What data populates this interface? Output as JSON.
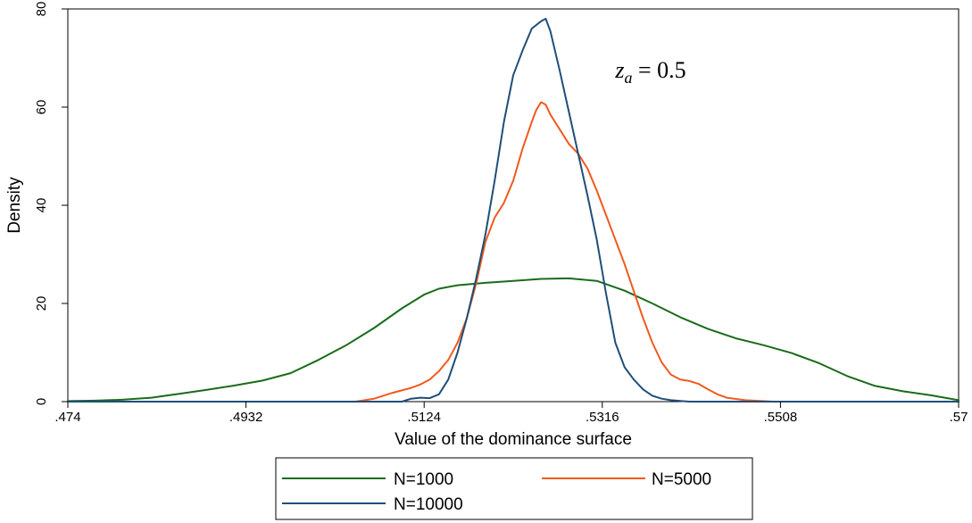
{
  "chart_data": {
    "type": "line",
    "xlabel": "Value of the dominance surface",
    "ylabel": "Density",
    "xlim": [
      0.474,
      0.57
    ],
    "ylim": [
      0,
      80
    ],
    "x_ticks": [
      0.474,
      0.4932,
      0.5124,
      0.5316,
      0.5508,
      0.57
    ],
    "x_tick_labels": [
      ".474",
      ".4932",
      ".5124",
      ".5316",
      ".5508",
      ".57"
    ],
    "y_ticks": [
      0,
      20,
      40,
      60,
      80
    ],
    "y_tick_labels": [
      "0",
      "20",
      "40",
      "60",
      "80"
    ],
    "annotation": {
      "var": "z",
      "sub": "a",
      "rest": " = 0.5",
      "x": 0.533,
      "y": 66
    },
    "grid": false,
    "legend_position": "bottom",
    "series": [
      {
        "name": "N=1000",
        "color": "#1a6b1a",
        "points": [
          [
            0.474,
            0.1
          ],
          [
            0.477,
            0.2
          ],
          [
            0.48,
            0.4
          ],
          [
            0.483,
            0.8
          ],
          [
            0.486,
            1.6
          ],
          [
            0.489,
            2.4
          ],
          [
            0.492,
            3.3
          ],
          [
            0.495,
            4.3
          ],
          [
            0.498,
            5.8
          ],
          [
            0.501,
            8.5
          ],
          [
            0.504,
            11.5
          ],
          [
            0.507,
            15.0
          ],
          [
            0.51,
            19.0
          ],
          [
            0.5124,
            21.8
          ],
          [
            0.514,
            23.0
          ],
          [
            0.516,
            23.7
          ],
          [
            0.519,
            24.2
          ],
          [
            0.522,
            24.6
          ],
          [
            0.525,
            25.0
          ],
          [
            0.528,
            25.1
          ],
          [
            0.531,
            24.6
          ],
          [
            0.534,
            22.6
          ],
          [
            0.537,
            20.0
          ],
          [
            0.54,
            17.2
          ],
          [
            0.543,
            14.8
          ],
          [
            0.546,
            12.9
          ],
          [
            0.549,
            11.5
          ],
          [
            0.552,
            9.9
          ],
          [
            0.555,
            7.8
          ],
          [
            0.558,
            5.2
          ],
          [
            0.561,
            3.2
          ],
          [
            0.564,
            2.1
          ],
          [
            0.567,
            1.3
          ],
          [
            0.57,
            0.3
          ]
        ]
      },
      {
        "name": "N=5000",
        "color": "#f05a1e",
        "points": [
          [
            0.474,
            0.0
          ],
          [
            0.505,
            0.0
          ],
          [
            0.507,
            0.6
          ],
          [
            0.509,
            1.8
          ],
          [
            0.511,
            2.8
          ],
          [
            0.512,
            3.5
          ],
          [
            0.513,
            4.5
          ],
          [
            0.514,
            6.2
          ],
          [
            0.515,
            8.5
          ],
          [
            0.516,
            12.0
          ],
          [
            0.517,
            17.0
          ],
          [
            0.518,
            24.0
          ],
          [
            0.519,
            32.5
          ],
          [
            0.52,
            37.5
          ],
          [
            0.521,
            40.5
          ],
          [
            0.522,
            45.0
          ],
          [
            0.523,
            51.5
          ],
          [
            0.524,
            57.0
          ],
          [
            0.5245,
            59.5
          ],
          [
            0.525,
            61.0
          ],
          [
            0.5255,
            60.5
          ],
          [
            0.526,
            58.5
          ],
          [
            0.527,
            55.5
          ],
          [
            0.528,
            52.5
          ],
          [
            0.529,
            50.5
          ],
          [
            0.53,
            47.5
          ],
          [
            0.531,
            43.0
          ],
          [
            0.532,
            38.0
          ],
          [
            0.533,
            33.0
          ],
          [
            0.534,
            28.0
          ],
          [
            0.535,
            22.5
          ],
          [
            0.536,
            17.0
          ],
          [
            0.537,
            12.0
          ],
          [
            0.538,
            8.0
          ],
          [
            0.539,
            5.5
          ],
          [
            0.54,
            4.5
          ],
          [
            0.541,
            4.2
          ],
          [
            0.542,
            3.6
          ],
          [
            0.543,
            2.5
          ],
          [
            0.544,
            1.5
          ],
          [
            0.545,
            0.8
          ],
          [
            0.547,
            0.3
          ],
          [
            0.55,
            0.0
          ],
          [
            0.57,
            0.0
          ]
        ]
      },
      {
        "name": "N=10000",
        "color": "#1f4e79",
        "points": [
          [
            0.474,
            0.0
          ],
          [
            0.51,
            0.0
          ],
          [
            0.511,
            0.6
          ],
          [
            0.512,
            0.8
          ],
          [
            0.513,
            0.7
          ],
          [
            0.514,
            1.5
          ],
          [
            0.515,
            4.5
          ],
          [
            0.516,
            10.0
          ],
          [
            0.517,
            17.0
          ],
          [
            0.518,
            25.0
          ],
          [
            0.519,
            34.0
          ],
          [
            0.52,
            45.0
          ],
          [
            0.521,
            57.0
          ],
          [
            0.522,
            66.5
          ],
          [
            0.523,
            71.5
          ],
          [
            0.524,
            76.0
          ],
          [
            0.525,
            77.5
          ],
          [
            0.5255,
            78.0
          ],
          [
            0.526,
            75.5
          ],
          [
            0.527,
            67.5
          ],
          [
            0.528,
            59.0
          ],
          [
            0.529,
            50.5
          ],
          [
            0.53,
            42.0
          ],
          [
            0.531,
            33.0
          ],
          [
            0.532,
            22.0
          ],
          [
            0.533,
            12.0
          ],
          [
            0.534,
            7.0
          ],
          [
            0.535,
            4.5
          ],
          [
            0.536,
            2.5
          ],
          [
            0.537,
            1.2
          ],
          [
            0.538,
            0.6
          ],
          [
            0.539,
            0.3
          ],
          [
            0.541,
            0.0
          ],
          [
            0.57,
            0.0
          ]
        ]
      }
    ]
  },
  "legend": {
    "items": [
      "N=1000",
      "N=5000",
      "N=10000"
    ]
  }
}
